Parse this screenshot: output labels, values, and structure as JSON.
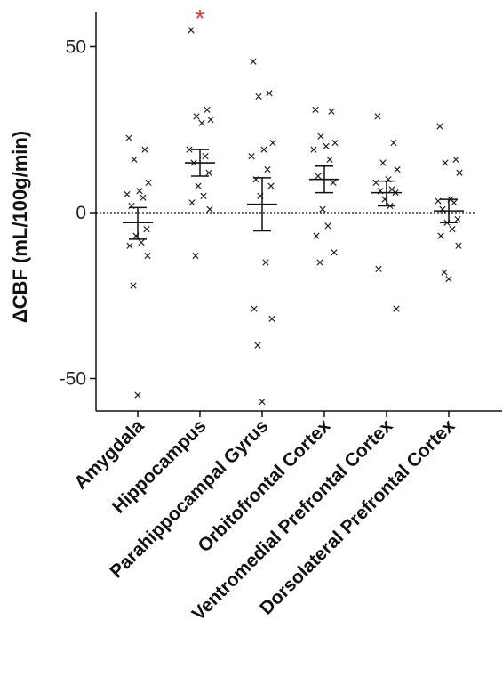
{
  "chart_data": {
    "type": "scatter",
    "ylabel": "ΔCBF (mL/100g/min)",
    "ylim": [
      -60,
      60
    ],
    "yticks": [
      50,
      0,
      -50
    ],
    "grid": false,
    "zero_line": "dotted",
    "categories": [
      "Amygdala",
      "Hippocampus",
      "Parahippocampal Gyrus",
      "Orbitofrontal Cortex",
      "Ventromedial Prefrontal Cortex",
      "Dorsolateral Prefrontal Cortex"
    ],
    "significance_marker": {
      "category": "Hippocampus",
      "label": "*",
      "color": "#e8322e"
    },
    "groups": [
      {
        "category": "Amygdala",
        "mean": -3,
        "sem_low": -8,
        "sem_high": 1.5,
        "points": [
          22.5,
          19,
          16,
          9,
          6.5,
          5.5,
          4.5,
          2,
          -5,
          -7,
          -9,
          -10,
          -13,
          -22,
          -55
        ]
      },
      {
        "category": "Hippocampus",
        "mean": 15,
        "sem_low": 11,
        "sem_high": 19,
        "points": [
          55,
          31,
          29,
          28,
          27,
          19,
          17,
          15,
          12,
          8,
          5,
          3,
          1,
          -13
        ]
      },
      {
        "category": "Parahippocampal Gyrus",
        "mean": 2.5,
        "sem_low": -5.5,
        "sem_high": 10.5,
        "points": [
          45.5,
          36,
          35,
          21,
          19,
          17,
          13,
          10,
          8,
          5,
          -15,
          -29,
          -32,
          -40,
          -57
        ]
      },
      {
        "category": "Orbitofrontal Cortex",
        "mean": 10,
        "sem_low": 6,
        "sem_high": 14,
        "points": [
          31,
          30.5,
          23,
          21,
          20,
          19,
          16,
          11,
          9,
          1,
          -4,
          -7,
          -12,
          -15
        ]
      },
      {
        "category": "Ventromedial Prefrontal Cortex",
        "mean": 6,
        "sem_low": 2,
        "sem_high": 9.5,
        "points": [
          29,
          21,
          15,
          13,
          10,
          9,
          7,
          6.5,
          6,
          4,
          2,
          -17,
          -29
        ]
      },
      {
        "category": "Dorsolateral Prefrontal Cortex",
        "mean": 0.5,
        "sem_low": -3,
        "sem_high": 4,
        "points": [
          26,
          16,
          15,
          12,
          4,
          3.5,
          3,
          1,
          -2,
          -3,
          -5,
          -7,
          -10,
          -18,
          -20
        ]
      }
    ]
  }
}
